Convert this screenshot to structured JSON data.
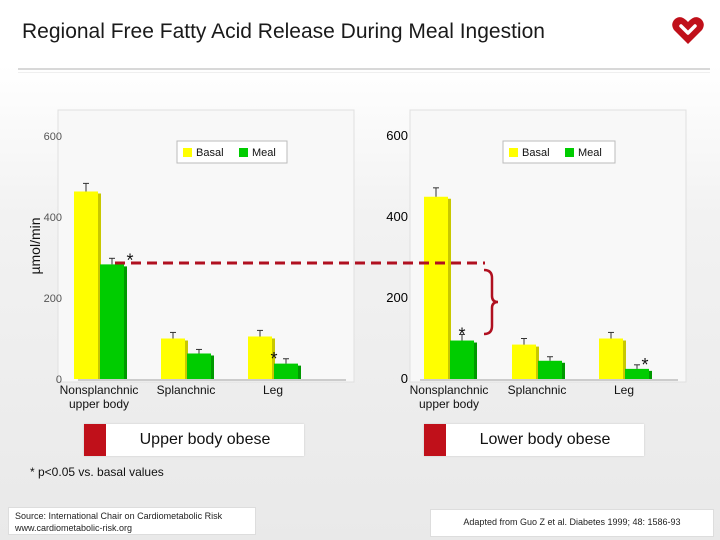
{
  "title": "Regional Free Fatty Acid Release During Meal Ingestion",
  "ylabel": "µmol/min",
  "colors": {
    "basal": "#ffff00",
    "meal": "#00cc00",
    "accent": "#c0101a",
    "dashed": "#b01020"
  },
  "chart_data": [
    {
      "type": "bar",
      "group_label": "Upper body obese",
      "categories": [
        "Nonsplanchnic upper body",
        "Splanchnic",
        "Leg"
      ],
      "category_lines": [
        [
          "Nonsplanchnic",
          "upper body"
        ],
        [
          "Splanchnic"
        ],
        [
          "Leg"
        ]
      ],
      "series": [
        {
          "name": "Basal",
          "values": [
            463,
            100,
            105
          ]
        },
        {
          "name": "Meal",
          "values": [
            283,
            63,
            38
          ]
        }
      ],
      "errors": {
        "Basal": [
          20,
          15,
          15
        ],
        "Meal": [
          15,
          10,
          12
        ]
      },
      "significant": [
        true,
        false,
        true
      ],
      "ylim": [
        0,
        600
      ],
      "yticks": [
        "0",
        "200",
        "400",
        "600"
      ]
    },
    {
      "type": "bar",
      "group_label": "Lower body obese",
      "categories": [
        "Nonsplanchnic upper body",
        "Splanchnic",
        "Leg"
      ],
      "category_lines": [
        [
          "Nonsplanchnic",
          "upper body"
        ],
        [
          "Splanchnic"
        ],
        [
          "Leg"
        ]
      ],
      "series": [
        {
          "name": "Basal",
          "values": [
            450,
            85,
            100
          ]
        },
        {
          "name": "Meal",
          "values": [
            95,
            45,
            25
          ]
        }
      ],
      "errors": {
        "Basal": [
          22,
          15,
          15
        ],
        "Meal": [
          15,
          10,
          10
        ]
      },
      "significant": [
        true,
        false,
        true
      ],
      "ylim": [
        0,
        600
      ],
      "yticks": [
        "0",
        "200",
        "400",
        "600"
      ]
    }
  ],
  "legend": {
    "basal": "Basal",
    "meal": "Meal"
  },
  "star": "*",
  "footnote": "* p<0.05 vs. basal values",
  "source_line1": "Source: International Chair on Cardiometabolic Risk",
  "source_line2": "www.cardiometabolic-risk.org",
  "adapted": "Adapted from Guo Z et al. Diabetes 1999; 48: 1586-93"
}
